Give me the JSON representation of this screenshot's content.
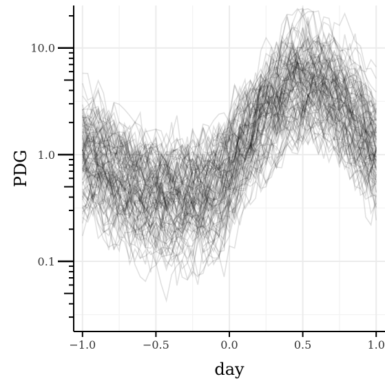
{
  "chart_data": {
    "type": "line",
    "title": "",
    "xlabel": "day",
    "ylabel": "PDG",
    "xlim": [
      -1.06,
      1.06
    ],
    "ylim": [
      0.022,
      25
    ],
    "y_scale": "log",
    "grid": true,
    "x_ticks": [
      -1.0,
      -0.5,
      0.0,
      0.5,
      1.0
    ],
    "x_tick_labels": [
      "−1.0",
      "−0.5",
      "0.0",
      "0.5",
      "1.0"
    ],
    "y_ticks": [
      0.1,
      1.0,
      10.0
    ],
    "y_tick_labels": [
      "0.1",
      "1.0",
      "10.0"
    ],
    "line_color": "#000000",
    "line_opacity": 0.12,
    "grid_color": "#ebebeb",
    "n_series": 110,
    "median_profile": {
      "x": [
        -1.0,
        -0.9,
        -0.8,
        -0.7,
        -0.6,
        -0.5,
        -0.4,
        -0.3,
        -0.2,
        -0.1,
        0.0,
        0.1,
        0.2,
        0.3,
        0.4,
        0.5,
        0.6,
        0.7,
        0.8,
        0.9,
        1.0
      ],
      "y": [
        1.0,
        0.95,
        0.7,
        0.55,
        0.45,
        0.4,
        0.38,
        0.38,
        0.4,
        0.45,
        0.6,
        1.2,
        2.0,
        3.0,
        4.0,
        5.0,
        4.8,
        4.0,
        3.0,
        2.0,
        1.0
      ]
    }
  }
}
